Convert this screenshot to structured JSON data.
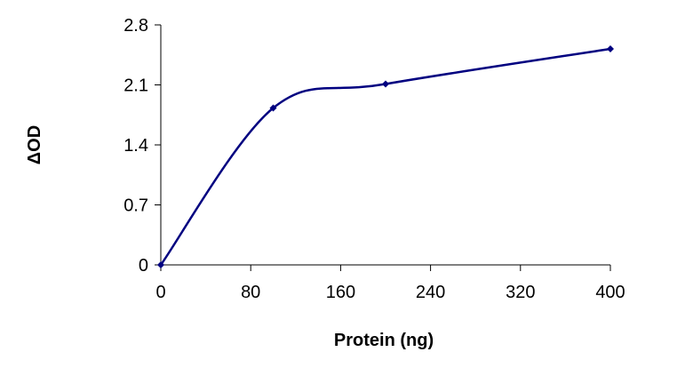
{
  "chart_data": {
    "type": "line",
    "xlabel": "Protein (ng)",
    "ylabel": "ΔOD",
    "xlim": [
      0,
      400
    ],
    "ylim": [
      0,
      2.8
    ],
    "x_ticks": [
      "0",
      "80",
      "160",
      "240",
      "320",
      "400"
    ],
    "y_ticks": [
      "0",
      "0.7",
      "1.4",
      "2.1",
      "2.8"
    ],
    "grid": false,
    "smoothed": true,
    "series": [
      {
        "x": [
          0,
          100,
          200,
          400
        ],
        "y": [
          0,
          1.83,
          2.11,
          2.52
        ],
        "color": "#000080"
      }
    ]
  }
}
